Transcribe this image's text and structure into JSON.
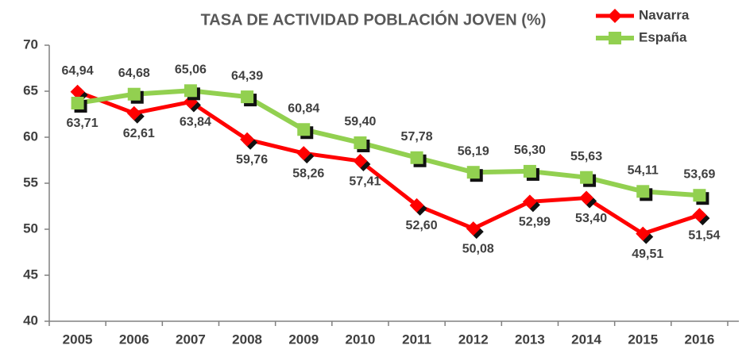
{
  "chart_data": {
    "type": "line",
    "title": "TASA DE ACTIVIDAD POBLACIÓN JOVEN  (%)",
    "categories": [
      "2005",
      "2006",
      "2007",
      "2008",
      "2009",
      "2010",
      "2011",
      "2012",
      "2013",
      "2014",
      "2015",
      "2016"
    ],
    "series": [
      {
        "name": "Navarra",
        "color": "#ff0000",
        "marker": "diamond",
        "values": [
          64.94,
          62.61,
          63.84,
          59.76,
          58.26,
          57.41,
          52.6,
          50.08,
          52.99,
          53.4,
          49.51,
          51.54
        ],
        "value_labels": [
          "64,94",
          "62,61",
          "63,84",
          "59,76",
          "58,26",
          "57,41",
          "52,60",
          "50,08",
          "52,99",
          "53,40",
          "49,51",
          "51,54"
        ]
      },
      {
        "name": "España",
        "color": "#92d050",
        "marker": "square",
        "values": [
          63.71,
          64.68,
          65.06,
          64.39,
          60.84,
          59.4,
          57.78,
          56.19,
          56.3,
          55.63,
          54.11,
          53.69
        ],
        "value_labels": [
          "63,71",
          "64,68",
          "65,06",
          "64,39",
          "60,84",
          "59,40",
          "57,78",
          "56,19",
          "56,30",
          "55,63",
          "54,11",
          "53,69"
        ]
      }
    ],
    "ylim": [
      40,
      70
    ],
    "yticks": [
      40,
      45,
      50,
      55,
      60,
      65,
      70
    ],
    "grid": false,
    "legend": "top-right"
  }
}
